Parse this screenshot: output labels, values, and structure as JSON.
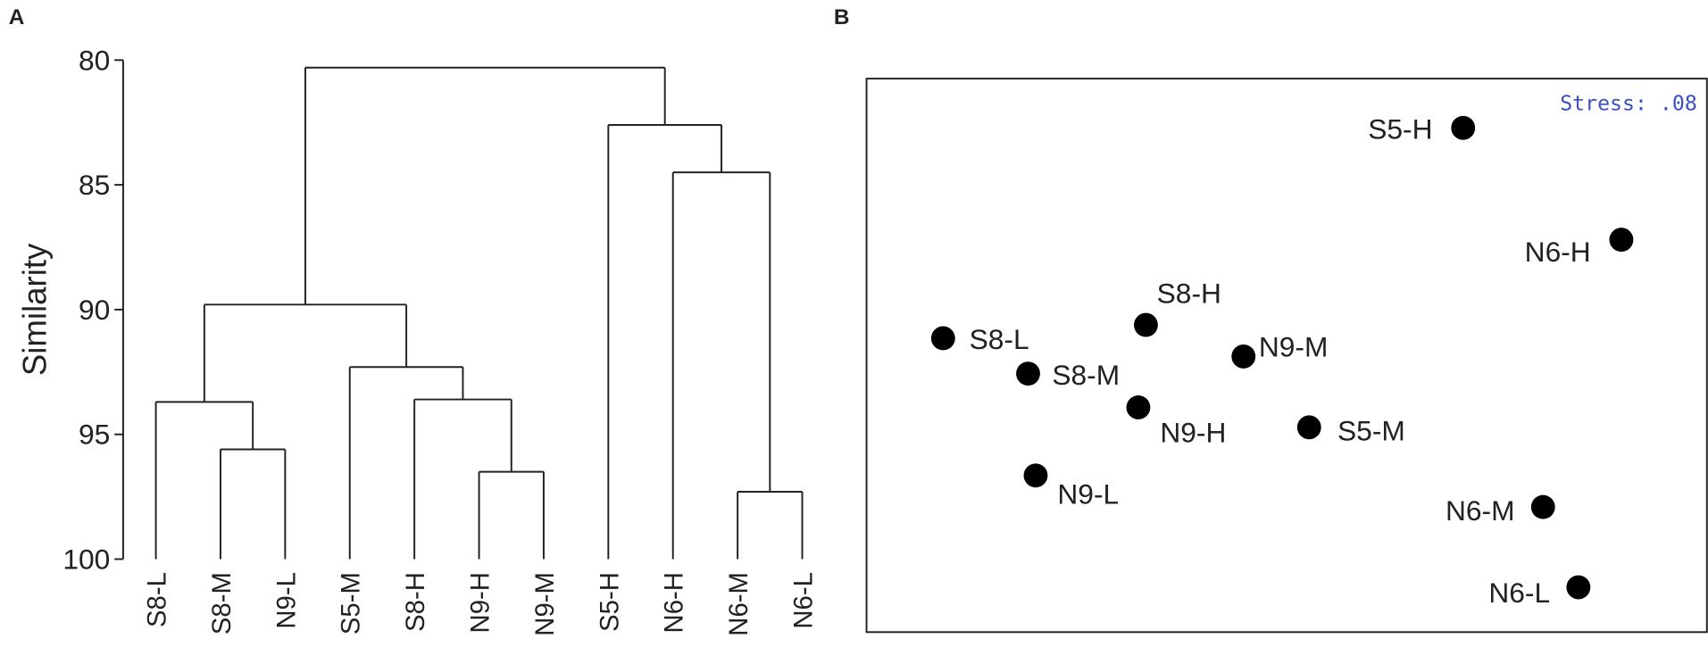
{
  "chart_data": [
    {
      "type": "dendrogram",
      "panel_label": "A",
      "y_label": "Similarity",
      "ylim": [
        80,
        100
      ],
      "yticks": [
        80,
        85,
        90,
        95,
        100
      ],
      "categories": [
        "S8-L",
        "S8-M",
        "N9-L",
        "S5-M",
        "S8-H",
        "N9-H",
        "N9-M",
        "S5-H",
        "N6-H",
        "N6-M",
        "N6-L"
      ],
      "merges": [
        {
          "children": [
            1,
            2
          ],
          "height": 95.6
        },
        {
          "children": [
            0,
            11
          ],
          "height": 93.7
        },
        {
          "children": [
            5,
            6
          ],
          "height": 96.5
        },
        {
          "children": [
            4,
            13
          ],
          "height": 93.6
        },
        {
          "children": [
            3,
            14
          ],
          "height": 92.3
        },
        {
          "children": [
            12,
            15
          ],
          "height": 89.8
        },
        {
          "children": [
            9,
            10
          ],
          "height": 97.3
        },
        {
          "children": [
            8,
            17
          ],
          "height": 84.5
        },
        {
          "children": [
            7,
            18
          ],
          "height": 82.6
        },
        {
          "children": [
            16,
            19
          ],
          "height": 80.3
        }
      ]
    },
    {
      "type": "scatter",
      "panel_label": "B",
      "annotation": "Stress: .08",
      "xlim": [
        0,
        100
      ],
      "ylim": [
        0,
        100
      ],
      "color": "#000000",
      "labels": [
        "S5-H",
        "N6-H",
        "S8-H",
        "S8-L",
        "N9-M",
        "S8-M",
        "N9-H",
        "S5-M",
        "N9-L",
        "N6-M",
        "N6-L"
      ],
      "x": [
        70.9,
        89.7,
        33.2,
        9.1,
        44.8,
        19.2,
        32.3,
        52.6,
        20.1,
        80.4,
        84.6
      ],
      "y": [
        91.1,
        70.9,
        55.5,
        53.1,
        49.8,
        46.7,
        40.6,
        37.0,
        28.3,
        22.6,
        8.1
      ]
    }
  ]
}
